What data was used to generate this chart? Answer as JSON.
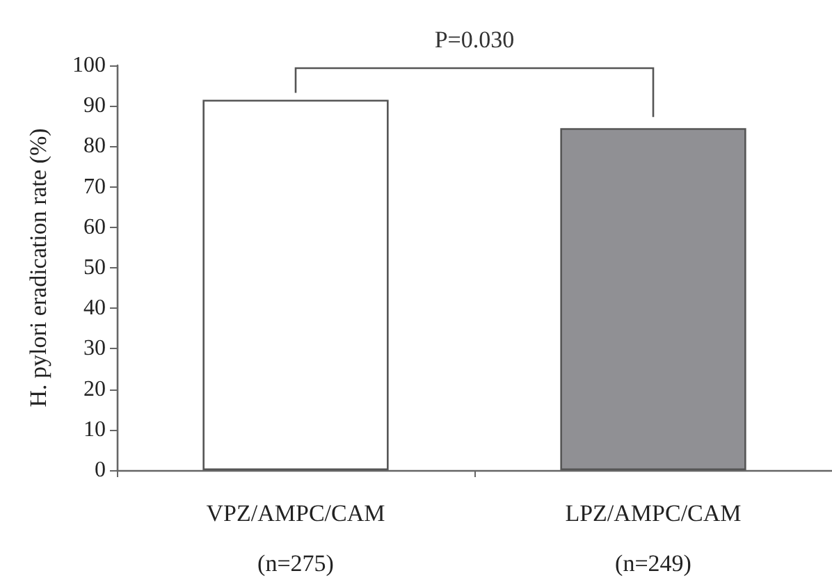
{
  "chart_data": {
    "type": "bar",
    "ylabel": "H. pylori eradication rate (%)",
    "categories": [
      "VPZ/AMPC/CAM\n\n(n=275)",
      "LPZ/AMPC/CAM\n\n(n=249)"
    ],
    "values": [
      91.5,
      84.5
    ],
    "colors": [
      "#ffffff",
      "#909094"
    ],
    "ylim": [
      0,
      100
    ],
    "yticks": [
      0,
      10,
      20,
      30,
      40,
      50,
      60,
      70,
      80,
      90,
      100
    ],
    "grid": false,
    "annotations": [
      "P=0.030"
    ]
  }
}
